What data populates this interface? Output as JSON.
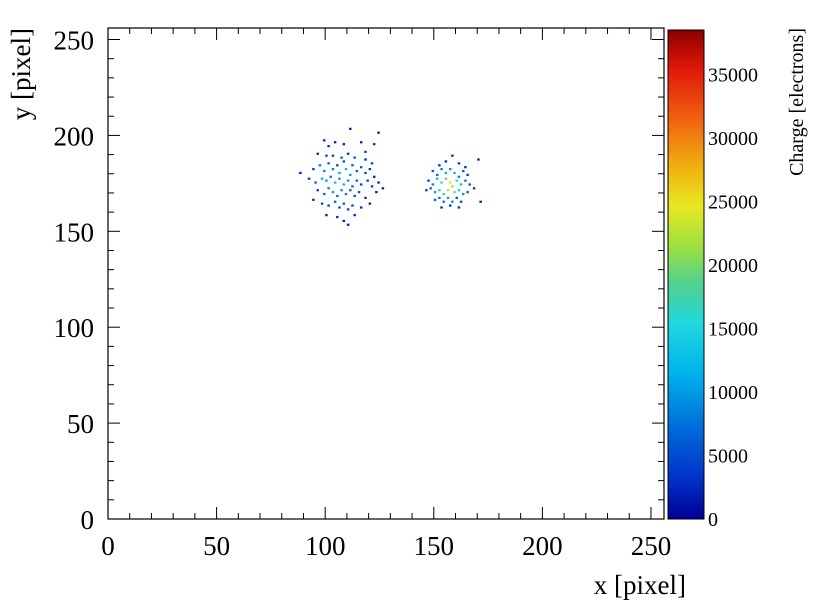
{
  "chart_data": {
    "type": "heatmap",
    "title": "",
    "xlabel": "x [pixel]",
    "ylabel": "y [pixel]",
    "zlabel": "Charge [electrons]",
    "xlim": [
      0,
      256
    ],
    "ylim": [
      0,
      256
    ],
    "zlim": [
      0,
      38500
    ],
    "xticks": [
      0,
      50,
      100,
      150,
      200,
      250
    ],
    "yticks": [
      0,
      50,
      100,
      150,
      200,
      250
    ],
    "zticks": [
      0,
      5000,
      10000,
      15000,
      20000,
      25000,
      30000,
      35000
    ],
    "colormap": "rainbow (dark blue → cyan → green → yellow → red)",
    "grid": false,
    "clusters": [
      {
        "center": [
          108,
          176
        ],
        "spread": 7,
        "peak_charge": 12000
      },
      {
        "center": [
          157,
          174
        ],
        "spread": 4,
        "peak_charge": 22000
      }
    ],
    "points": [
      [
        99,
        197,
        2500
      ],
      [
        101,
        194,
        3200
      ],
      [
        104,
        196,
        2200
      ],
      [
        108,
        195,
        1800
      ],
      [
        111,
        203,
        1500
      ],
      [
        116,
        196,
        2100
      ],
      [
        118,
        191,
        3500
      ],
      [
        122,
        195,
        2800
      ],
      [
        124,
        201,
        1400
      ],
      [
        96,
        190,
        2600
      ],
      [
        100,
        189,
        5200
      ],
      [
        103,
        189,
        4100
      ],
      [
        107,
        188,
        6200
      ],
      [
        110,
        190,
        3800
      ],
      [
        113,
        188,
        5400
      ],
      [
        118,
        187,
        2700
      ],
      [
        121,
        185,
        4200
      ],
      [
        94,
        182,
        4400
      ],
      [
        97,
        184,
        7800
      ],
      [
        99,
        181,
        9200
      ],
      [
        101,
        185,
        6500
      ],
      [
        103,
        182,
        8800
      ],
      [
        105,
        184,
        5200
      ],
      [
        106,
        180,
        11000
      ],
      [
        108,
        186,
        4800
      ],
      [
        109,
        182,
        12000
      ],
      [
        111,
        179,
        10500
      ],
      [
        112,
        184,
        6100
      ],
      [
        114,
        181,
        7300
      ],
      [
        116,
        183,
        5800
      ],
      [
        118,
        180,
        4600
      ],
      [
        120,
        182,
        3100
      ],
      [
        122,
        178,
        2400
      ],
      [
        88,
        180,
        2300
      ],
      [
        92,
        177,
        3600
      ],
      [
        95,
        175,
        6800
      ],
      [
        98,
        177,
        11200
      ],
      [
        100,
        176,
        9800
      ],
      [
        102,
        178,
        7600
      ],
      [
        104,
        175,
        12500
      ],
      [
        106,
        177,
        9100
      ],
      [
        108,
        174,
        11800
      ],
      [
        110,
        176,
        8900
      ],
      [
        112,
        173,
        7200
      ],
      [
        114,
        176,
        6400
      ],
      [
        116,
        174,
        5100
      ],
      [
        119,
        176,
        4300
      ],
      [
        121,
        173,
        3800
      ],
      [
        124,
        175,
        2600
      ],
      [
        126,
        172,
        1700
      ],
      [
        96,
        171,
        4100
      ],
      [
        99,
        169,
        6900
      ],
      [
        101,
        172,
        8200
      ],
      [
        103,
        170,
        10200
      ],
      [
        105,
        168,
        7400
      ],
      [
        107,
        171,
        9600
      ],
      [
        109,
        169,
        8400
      ],
      [
        111,
        171,
        6700
      ],
      [
        113,
        168,
        5600
      ],
      [
        115,
        170,
        4900
      ],
      [
        118,
        167,
        3300
      ],
      [
        94,
        166,
        2500
      ],
      [
        98,
        164,
        4700
      ],
      [
        101,
        163,
        3900
      ],
      [
        104,
        165,
        5800
      ],
      [
        106,
        162,
        4500
      ],
      [
        108,
        164,
        6300
      ],
      [
        110,
        161,
        3700
      ],
      [
        112,
        163,
        4200
      ],
      [
        116,
        162,
        2800
      ],
      [
        120,
        164,
        2100
      ],
      [
        100,
        158,
        2000
      ],
      [
        105,
        157,
        3100
      ],
      [
        108,
        155,
        1900
      ],
      [
        113,
        158,
        2500
      ],
      [
        110,
        153,
        1600
      ],
      [
        123,
        170,
        2200
      ],
      [
        152,
        184,
        3600
      ],
      [
        155,
        186,
        2800
      ],
      [
        158,
        189,
        2400
      ],
      [
        161,
        185,
        3200
      ],
      [
        164,
        183,
        2600
      ],
      [
        170,
        187,
        2000
      ],
      [
        149,
        181,
        5600
      ],
      [
        151,
        179,
        7400
      ],
      [
        153,
        182,
        8800
      ],
      [
        155,
        180,
        11200
      ],
      [
        157,
        182,
        9600
      ],
      [
        159,
        180,
        12800
      ],
      [
        161,
        178,
        8200
      ],
      [
        163,
        181,
        6400
      ],
      [
        165,
        179,
        4200
      ],
      [
        147,
        176,
        4900
      ],
      [
        149,
        174,
        8600
      ],
      [
        151,
        177,
        12400
      ],
      [
        153,
        175,
        16800
      ],
      [
        155,
        177,
        19500
      ],
      [
        157,
        175,
        24000
      ],
      [
        158,
        173,
        21800
      ],
      [
        160,
        176,
        17200
      ],
      [
        162,
        174,
        12600
      ],
      [
        164,
        176,
        7800
      ],
      [
        166,
        174,
        5300
      ],
      [
        168,
        172,
        3400
      ],
      [
        146,
        171,
        3900
      ],
      [
        148,
        172,
        7200
      ],
      [
        150,
        170,
        10600
      ],
      [
        152,
        171,
        15200
      ],
      [
        154,
        169,
        18600
      ],
      [
        156,
        171,
        22400
      ],
      [
        159,
        170,
        20100
      ],
      [
        161,
        171,
        14300
      ],
      [
        163,
        169,
        9500
      ],
      [
        165,
        170,
        6100
      ],
      [
        150,
        166,
        5800
      ],
      [
        152,
        167,
        8300
      ],
      [
        154,
        165,
        7100
      ],
      [
        156,
        167,
        10400
      ],
      [
        158,
        165,
        8900
      ],
      [
        160,
        167,
        6600
      ],
      [
        162,
        165,
        4800
      ],
      [
        153,
        162,
        3300
      ],
      [
        157,
        163,
        2900
      ],
      [
        161,
        162,
        2300
      ],
      [
        171,
        165,
        1800
      ]
    ]
  }
}
